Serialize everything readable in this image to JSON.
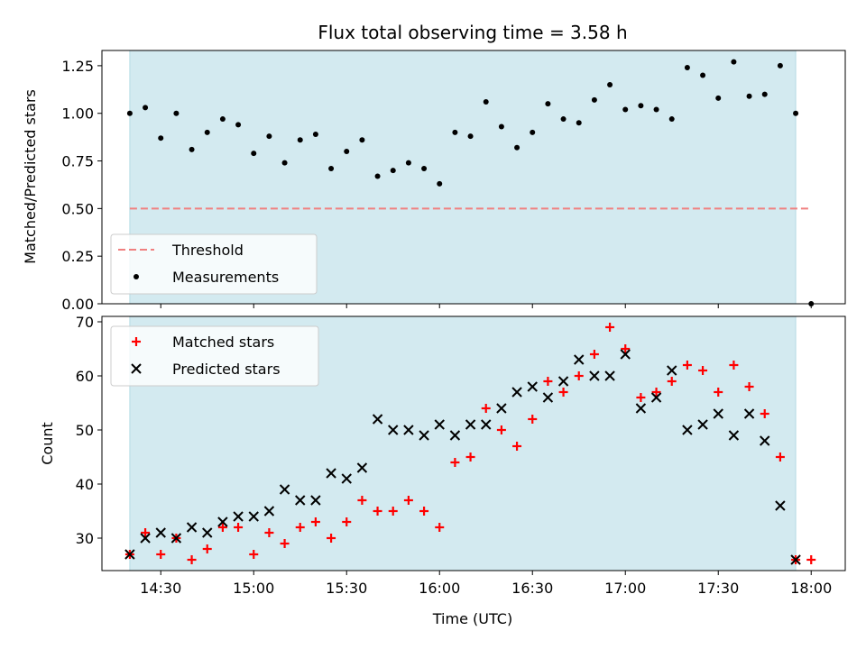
{
  "chart_data": [
    {
      "type": "scatter",
      "title": "Flux total observing time = 3.58 h",
      "xlabel": "",
      "ylabel": "Matched/Predicted stars",
      "ylim": [
        0,
        1.33
      ],
      "yticks": [
        "0.00",
        "0.25",
        "0.50",
        "0.75",
        "1.00",
        "1.25"
      ],
      "ytick_values": [
        0,
        0.25,
        0.5,
        0.75,
        1.0,
        1.25
      ],
      "xtick_values": [
        "14:30",
        "15:00",
        "15:30",
        "16:00",
        "16:30",
        "17:00",
        "17:30",
        "18:00"
      ],
      "xlim": [
        "14:11",
        "18:11"
      ],
      "shaded_span": [
        "14:20",
        "17:55"
      ],
      "shade_color": "#d3eaf0",
      "legend": "lower-left",
      "threshold": {
        "name": "Threshold",
        "y": 0.5,
        "x_range": [
          "14:20",
          "18:00"
        ],
        "color": "#f08080"
      },
      "series": [
        {
          "name": "Measurements",
          "color": "#000000",
          "x": [
            "14:20",
            "14:25",
            "14:30",
            "14:35",
            "14:40",
            "14:45",
            "14:50",
            "14:55",
            "15:00",
            "15:05",
            "15:10",
            "15:15",
            "15:20",
            "15:25",
            "15:30",
            "15:35",
            "15:40",
            "15:45",
            "15:50",
            "15:55",
            "16:00",
            "16:05",
            "16:10",
            "16:15",
            "16:20",
            "16:25",
            "16:30",
            "16:35",
            "16:40",
            "16:45",
            "16:50",
            "16:55",
            "17:00",
            "17:05",
            "17:10",
            "17:15",
            "17:20",
            "17:25",
            "17:30",
            "17:35",
            "17:40",
            "17:45",
            "17:50",
            "17:55",
            "18:00"
          ],
          "y": [
            1.0,
            1.03,
            0.87,
            1.0,
            0.81,
            0.9,
            0.97,
            0.94,
            0.79,
            0.88,
            0.74,
            0.86,
            0.89,
            0.71,
            0.8,
            0.86,
            0.67,
            0.7,
            0.74,
            0.71,
            0.63,
            0.9,
            0.88,
            1.06,
            0.93,
            0.82,
            0.9,
            1.05,
            0.97,
            0.95,
            1.07,
            1.15,
            1.02,
            1.04,
            1.02,
            0.97,
            1.24,
            1.2,
            1.08,
            1.27,
            1.09,
            1.1,
            1.25,
            1.0,
            0.0
          ]
        }
      ]
    },
    {
      "type": "scatter",
      "title": "",
      "xlabel": "Time (UTC)",
      "ylabel": "Count",
      "ylim": [
        24,
        71
      ],
      "yticks": [
        "30",
        "40",
        "50",
        "60",
        "70"
      ],
      "ytick_values": [
        30,
        40,
        50,
        60,
        70
      ],
      "xticks": [
        "14:30",
        "15:00",
        "15:30",
        "16:00",
        "16:30",
        "17:00",
        "17:30",
        "18:00"
      ],
      "xlim": [
        "14:11",
        "18:11"
      ],
      "shaded_span": [
        "14:20",
        "17:55"
      ],
      "shade_color": "#d3eaf0",
      "legend": "upper-left",
      "series": [
        {
          "name": "Matched stars",
          "marker": "plus",
          "color": "#ff0000",
          "x": [
            "14:20",
            "14:25",
            "14:30",
            "14:35",
            "14:40",
            "14:45",
            "14:50",
            "14:55",
            "15:00",
            "15:05",
            "15:10",
            "15:15",
            "15:20",
            "15:25",
            "15:30",
            "15:35",
            "15:40",
            "15:45",
            "15:50",
            "15:55",
            "16:00",
            "16:05",
            "16:10",
            "16:15",
            "16:20",
            "16:25",
            "16:30",
            "16:35",
            "16:40",
            "16:45",
            "16:50",
            "16:55",
            "17:00",
            "17:05",
            "17:10",
            "17:15",
            "17:20",
            "17:25",
            "17:30",
            "17:35",
            "17:40",
            "17:45",
            "17:50",
            "17:55",
            "18:00"
          ],
          "y": [
            27,
            31,
            27,
            30,
            26,
            28,
            32,
            32,
            27,
            31,
            29,
            32,
            33,
            30,
            33,
            37,
            35,
            35,
            37,
            35,
            32,
            44,
            45,
            54,
            50,
            47,
            52,
            59,
            57,
            60,
            64,
            69,
            65,
            56,
            57,
            59,
            62,
            61,
            57,
            62,
            58,
            53,
            45,
            26,
            26
          ]
        },
        {
          "name": "Predicted stars",
          "marker": "x",
          "color": "#000000",
          "x": [
            "14:20",
            "14:25",
            "14:30",
            "14:35",
            "14:40",
            "14:45",
            "14:50",
            "14:55",
            "15:00",
            "15:05",
            "15:10",
            "15:15",
            "15:20",
            "15:25",
            "15:30",
            "15:35",
            "15:40",
            "15:45",
            "15:50",
            "15:55",
            "16:00",
            "16:05",
            "16:10",
            "16:15",
            "16:20",
            "16:25",
            "16:30",
            "16:35",
            "16:40",
            "16:45",
            "16:50",
            "16:55",
            "17:00",
            "17:05",
            "17:10",
            "17:15",
            "17:20",
            "17:25",
            "17:30",
            "17:35",
            "17:40",
            "17:45",
            "17:50",
            "17:55"
          ],
          "y": [
            27,
            30,
            31,
            30,
            32,
            31,
            33,
            34,
            34,
            35,
            39,
            37,
            37,
            42,
            41,
            43,
            52,
            50,
            50,
            49,
            51,
            49,
            51,
            51,
            54,
            57,
            58,
            56,
            59,
            63,
            60,
            60,
            64,
            54,
            56,
            61,
            50,
            51,
            53,
            49,
            53,
            48,
            36,
            26
          ]
        }
      ]
    }
  ]
}
